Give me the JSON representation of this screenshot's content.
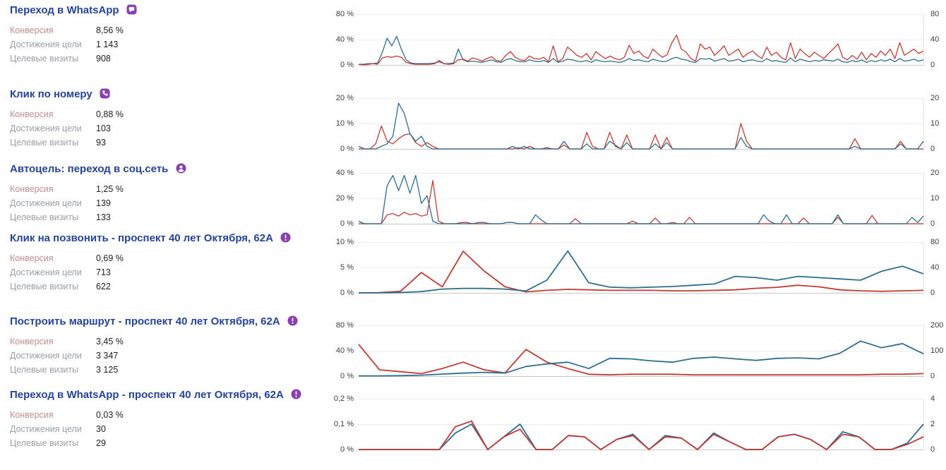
{
  "stat_labels": {
    "conversion": "Конверсия",
    "reaches": "Достижения цели",
    "visits": "Целевые визиты"
  },
  "colors": {
    "title_blue": "#26439b",
    "icon_purple": "#8a3fb0",
    "line_red": "#c23b34",
    "line_blue": "#2e6e91",
    "conversion_label_rose": "#c08e8e",
    "stat_label_gray": "#9aa0a6"
  },
  "goals": [
    {
      "title": "Переход в WhatsApp",
      "icon": "chat-icon",
      "conversion": "8,56 %",
      "reaches": "1 143",
      "visits": "908"
    },
    {
      "title": "Клик по номеру",
      "icon": "phone-icon",
      "conversion": "0,88 %",
      "reaches": "103",
      "visits": "93"
    },
    {
      "title": "Автоцель: переход в соц.сеть",
      "icon": "person-icon",
      "conversion": "1,25 %",
      "reaches": "139",
      "visits": "133"
    },
    {
      "title": "Клик на позвонить - проспект 40 лет Октября, 62А",
      "icon": "alert-icon",
      "conversion": "0,69 %",
      "reaches": "713",
      "visits": "622"
    },
    {
      "title": "Построить маршрут - проспект 40 лет Октября, 62А",
      "icon": "alert-icon",
      "conversion": "3,45 %",
      "reaches": "3 347",
      "visits": "3 125"
    },
    {
      "title": "Переход в WhatsApp - проспект 40 лет Октября, 62А",
      "icon": "alert-icon",
      "conversion": "0,03 %",
      "reaches": "30",
      "visits": "29"
    }
  ],
  "chart_data": [
    {
      "type": "line",
      "title": "Переход в WhatsApp",
      "x_tick_labels": [],
      "grid": true,
      "legend": false,
      "left_axis": {
        "unit": "%",
        "max": 80,
        "ticks": [
          "80 %",
          "40 %",
          "0 %"
        ]
      },
      "right_axis": {
        "unit": "count",
        "max": 80,
        "ticks": [
          "80",
          "40",
          "0"
        ]
      },
      "series": [
        {
          "name": "Достижения цели",
          "axis": "right",
          "color": "#2e6e91",
          "values": [
            1,
            1,
            2,
            2,
            3,
            20,
            42,
            30,
            45,
            25,
            8,
            3,
            2,
            2,
            2,
            2,
            3,
            5,
            2,
            2,
            3,
            25,
            8,
            5,
            6,
            5,
            4,
            6,
            8,
            5,
            4,
            8,
            10,
            7,
            5,
            5,
            8,
            6,
            5,
            7,
            4,
            10,
            4,
            6,
            9,
            8,
            6,
            5,
            7,
            4,
            8,
            6,
            5,
            6,
            5,
            4,
            6,
            10,
            7,
            8,
            6,
            5,
            9,
            7,
            5,
            6,
            10,
            12,
            9,
            8,
            5,
            4,
            10,
            9,
            10,
            6,
            8,
            10,
            6,
            7,
            9,
            5,
            7,
            8,
            6,
            5,
            10,
            6,
            7,
            5,
            4,
            11,
            5,
            9,
            7,
            5,
            7,
            6,
            8,
            7,
            6,
            9,
            5,
            4,
            7,
            5,
            8,
            4,
            7,
            5,
            8,
            6,
            9,
            5,
            10,
            6,
            7,
            9,
            6,
            8
          ]
        },
        {
          "name": "Конверсия",
          "axis": "left",
          "color": "#c23b34",
          "values": [
            1,
            0,
            1,
            2,
            1,
            11,
            13,
            12,
            14,
            12,
            4,
            2,
            1,
            1,
            1,
            1,
            2,
            7,
            2,
            1,
            2,
            8,
            9,
            6,
            11,
            9,
            6,
            10,
            13,
            7,
            6,
            15,
            21,
            12,
            8,
            7,
            14,
            10,
            9,
            12,
            5,
            30,
            5,
            10,
            28,
            22,
            15,
            12,
            18,
            8,
            21,
            15,
            10,
            14,
            10,
            8,
            12,
            31,
            18,
            22,
            14,
            10,
            25,
            18,
            12,
            16,
            35,
            47,
            25,
            20,
            10,
            6,
            33,
            25,
            28,
            15,
            22,
            30,
            15,
            20,
            25,
            12,
            18,
            22,
            15,
            10,
            28,
            15,
            20,
            12,
            8,
            35,
            10,
            25,
            18,
            12,
            20,
            15,
            10,
            18,
            25,
            33,
            12,
            8,
            15,
            9,
            20,
            8,
            18,
            12,
            22,
            15,
            25,
            10,
            35,
            15,
            20,
            25,
            18,
            22
          ]
        }
      ]
    },
    {
      "type": "line",
      "title": "Клик по номеру",
      "x_tick_labels": [],
      "grid": true,
      "legend": false,
      "left_axis": {
        "unit": "%",
        "max": 20,
        "ticks": [
          "20 %",
          "10 %",
          "0 %"
        ]
      },
      "right_axis": {
        "unit": "count",
        "max": 20,
        "ticks": [
          "20",
          "10",
          "0"
        ]
      },
      "series": [
        {
          "name": "Конверсия",
          "axis": "left",
          "color": "#c23b34",
          "values": [
            0,
            0,
            0,
            2,
            9,
            3,
            2,
            4,
            5.5,
            6,
            2.5,
            1,
            2.5,
            1,
            0,
            0,
            0,
            0,
            0,
            0,
            0,
            0,
            0,
            0,
            0,
            0,
            0,
            0,
            0.5,
            0,
            1,
            0,
            0,
            0.5,
            0,
            0,
            1.5,
            0,
            0,
            0,
            6.5,
            1,
            0,
            0,
            6.5,
            1,
            0,
            5.5,
            0,
            0,
            0,
            0,
            5.5,
            0,
            4.5,
            0,
            0,
            0,
            0,
            0,
            0,
            0,
            0,
            0,
            0,
            0,
            0,
            10,
            3,
            0,
            0,
            0,
            0,
            0,
            0,
            0,
            0,
            0,
            0,
            0,
            0,
            0,
            0,
            0,
            0,
            0,
            0,
            4,
            0,
            0,
            0,
            0,
            0,
            0,
            0,
            3,
            0,
            0,
            0,
            0
          ]
        },
        {
          "name": "Достижения цели",
          "axis": "right",
          "color": "#2e6e91",
          "values": [
            1,
            0,
            0,
            0,
            1,
            2,
            5,
            18,
            14,
            6,
            3,
            5,
            1,
            0,
            0,
            0,
            0,
            0,
            0,
            0,
            0,
            0,
            0,
            0,
            0,
            0,
            0,
            1,
            0,
            1,
            0,
            0,
            0,
            0,
            0,
            0,
            3,
            0,
            0,
            0,
            2,
            0,
            0,
            0,
            3,
            1.5,
            0,
            2.5,
            0,
            0,
            0,
            0,
            2,
            0,
            2.5,
            0,
            0,
            0,
            0,
            0,
            0,
            0,
            0,
            0,
            0,
            0,
            0,
            4.5,
            1,
            0,
            0,
            0,
            0,
            0,
            0,
            0,
            0,
            0,
            0,
            0,
            0,
            0,
            0,
            0,
            0,
            0,
            0,
            1,
            0,
            0,
            0,
            0,
            0,
            0,
            0,
            2,
            0,
            0,
            0,
            3
          ]
        }
      ]
    },
    {
      "type": "line",
      "title": "Автоцель: переход в соц.сеть",
      "x_tick_labels": [],
      "grid": true,
      "legend": false,
      "left_axis": {
        "unit": "%",
        "max": 40,
        "ticks": [
          "40 %",
          "20 %",
          "0 %"
        ]
      },
      "right_axis": {
        "unit": "count",
        "max": 20,
        "ticks": [
          "20",
          "10",
          "0"
        ]
      },
      "series": [
        {
          "name": "Конверсия",
          "axis": "left",
          "color": "#c23b34",
          "values": [
            0,
            0,
            0,
            0,
            0,
            7,
            8,
            6,
            9,
            7,
            8,
            6,
            7,
            34,
            2,
            0,
            0,
            0,
            1,
            1,
            0,
            0,
            0,
            0,
            0,
            0,
            1,
            1,
            0,
            0,
            0,
            0,
            0,
            0,
            0,
            0,
            0,
            0,
            4,
            0,
            0,
            0,
            0,
            0,
            0,
            0,
            0,
            0,
            2,
            0,
            0,
            0,
            4.5,
            0,
            0,
            1,
            0,
            0,
            5,
            0,
            0,
            0,
            0,
            0,
            0,
            0,
            0,
            0,
            0,
            0,
            0,
            0,
            0,
            0,
            0,
            0,
            0,
            0,
            4.5,
            0,
            0,
            0,
            0,
            0,
            5,
            0,
            0,
            0,
            0,
            0,
            6.5,
            0,
            0,
            0,
            0,
            0,
            0,
            0,
            0,
            0
          ]
        },
        {
          "name": "Достижения цели",
          "axis": "right",
          "color": "#2e6e91",
          "values": [
            1,
            0,
            0,
            0,
            0,
            15,
            19,
            13,
            19,
            12,
            19,
            8,
            11,
            1,
            0,
            0,
            0,
            0,
            0,
            0,
            0,
            0.5,
            0.5,
            0,
            0,
            0,
            0.5,
            0.5,
            0,
            0,
            0,
            3.5,
            1.5,
            0,
            0,
            0,
            0,
            0,
            0,
            0,
            0,
            0,
            0,
            0,
            0,
            0,
            0,
            0,
            0,
            0,
            0,
            0,
            0,
            0,
            0,
            0,
            0,
            0,
            0,
            0,
            0,
            0,
            0,
            0,
            0,
            0,
            0,
            0,
            0,
            0,
            0,
            3.5,
            1,
            0,
            0,
            3.5,
            0,
            0,
            0,
            0,
            0,
            0,
            0,
            0,
            3.5,
            0,
            0,
            0,
            0,
            0,
            0,
            0,
            0,
            0,
            0,
            0,
            0,
            2.5,
            0.5,
            3
          ]
        }
      ]
    },
    {
      "type": "line",
      "title": "Клик на позвонить - проспект 40 лет Октября, 62А",
      "x_tick_labels": [],
      "grid": true,
      "legend": false,
      "left_axis": {
        "unit": "%",
        "max": 10,
        "ticks": [
          "10 %",
          "5 %",
          "0 %"
        ]
      },
      "right_axis": {
        "unit": "count",
        "max": 80,
        "ticks": [
          "80",
          "40",
          "0"
        ]
      },
      "series": [
        {
          "name": "Конверсия",
          "axis": "left",
          "color": "#c23b34",
          "values": [
            0,
            0.05,
            0.3,
            4,
            1.2,
            8.2,
            4.3,
            1.2,
            0.2,
            0.5,
            0.7,
            0.6,
            0.5,
            0.5,
            0.5,
            0.4,
            0.4,
            0.5,
            0.6,
            0.9,
            1.1,
            1.5,
            1.2,
            0.6,
            0.4,
            0.3,
            0.4,
            0.5
          ]
        },
        {
          "name": "Достижения цели",
          "axis": "right",
          "color": "#2e6e91",
          "values": [
            0,
            0,
            0.5,
            2,
            6,
            7,
            7,
            6,
            3,
            20,
            66,
            16,
            9,
            8,
            9,
            10,
            12,
            14,
            26,
            24,
            20,
            26,
            24,
            22,
            20,
            34,
            42,
            30
          ]
        }
      ]
    },
    {
      "type": "line",
      "title": "Построить маршрут - проспект 40 лет Октября, 62А",
      "x_tick_labels": [],
      "grid": true,
      "legend": false,
      "left_axis": {
        "unit": "%",
        "max": 80,
        "ticks": [
          "80 %",
          "40 %",
          "0 %"
        ]
      },
      "right_axis": {
        "unit": "count",
        "max": 200,
        "ticks": [
          "200",
          "100",
          "0"
        ]
      },
      "series": [
        {
          "name": "Конверсия",
          "axis": "left",
          "color": "#c23b34",
          "values": [
            50,
            10,
            7,
            4,
            12,
            22,
            10,
            5,
            42,
            22,
            12,
            3,
            2,
            3,
            3,
            3,
            2,
            2,
            2,
            2,
            2,
            2,
            2,
            2,
            2,
            3,
            3,
            4
          ]
        },
        {
          "name": "Достижения цели",
          "axis": "right",
          "color": "#2e6e91",
          "values": [
            1,
            1,
            2,
            4,
            8,
            12,
            15,
            12,
            38,
            48,
            55,
            30,
            70,
            68,
            60,
            55,
            70,
            75,
            68,
            62,
            70,
            72,
            68,
            90,
            138,
            112,
            128,
            88
          ]
        }
      ]
    },
    {
      "type": "line",
      "title": "Переход в WhatsApp - проспект 40 лет Октября, 62А",
      "x_tick_labels": [],
      "grid": true,
      "legend": false,
      "left_axis": {
        "unit": "%",
        "max": 0.2,
        "ticks": [
          "0,2 %",
          "0,1 %",
          "0 %"
        ]
      },
      "right_axis": {
        "unit": "count",
        "max": 4,
        "ticks": [
          "4",
          "2",
          "0"
        ]
      },
      "series": [
        {
          "name": "Достижения цели",
          "axis": "right",
          "color": "#2e6e91",
          "values": [
            0,
            0,
            0,
            0,
            0,
            0,
            1.3,
            2,
            0,
            1,
            2,
            0,
            0,
            1.1,
            1,
            0,
            0.8,
            1.2,
            0,
            1.1,
            0.9,
            0,
            1.3,
            0.6,
            0,
            0,
            1,
            1.2,
            0.8,
            0,
            1.4,
            1,
            0,
            0,
            0.5,
            2
          ]
        },
        {
          "name": "Конверсия",
          "axis": "left",
          "color": "#c23b34",
          "values": [
            0,
            0,
            0,
            0,
            0,
            0,
            0.09,
            0.112,
            0,
            0.05,
            0.08,
            0,
            0,
            0.055,
            0.05,
            0,
            0.04,
            0.055,
            0,
            0.05,
            0.045,
            0,
            0.06,
            0.03,
            0,
            0,
            0.05,
            0.06,
            0.04,
            0,
            0.06,
            0.05,
            0,
            0,
            0.02,
            0.05
          ]
        }
      ]
    }
  ]
}
